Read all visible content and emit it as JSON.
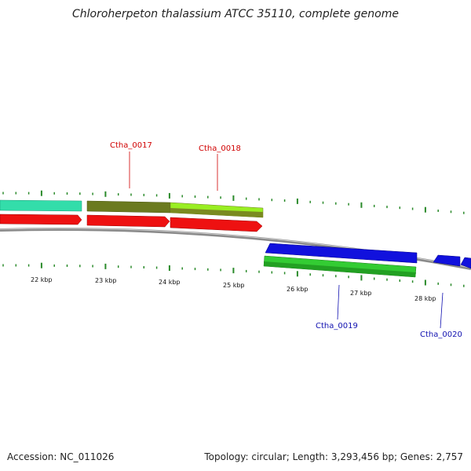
{
  "title": "Chloroherpeton thalassium ATCC 35110, complete genome",
  "footer": {
    "accession": "Accession: NC_011026",
    "topology": "Topology: circular; Length: 3,293,456 bp; Genes: 2,757"
  },
  "colors": {
    "backbone": "#8a8a8a",
    "tick": "#2a8a2a",
    "cds_red": "#ee1111",
    "cds_teal": "#33ddaa",
    "cds_olive": "#6b7a1f",
    "cds_lime": "#99ee22",
    "cds_blue": "#1111dd",
    "cds_green": "#33cc33",
    "label_red": "#d00000",
    "label_blue": "#1010b0"
  },
  "scale_labels": [
    "22 kbp",
    "23 kbp",
    "24 kbp",
    "25 kbp",
    "26 kbp",
    "27 kbp",
    "28 kbp"
  ],
  "gene_labels": [
    {
      "name": "Ctha_0017",
      "color": "red"
    },
    {
      "name": "Ctha_0018",
      "color": "red"
    },
    {
      "name": "Ctha_0019",
      "color": "blue"
    },
    {
      "name": "Ctha_0020",
      "color": "blue"
    }
  ]
}
